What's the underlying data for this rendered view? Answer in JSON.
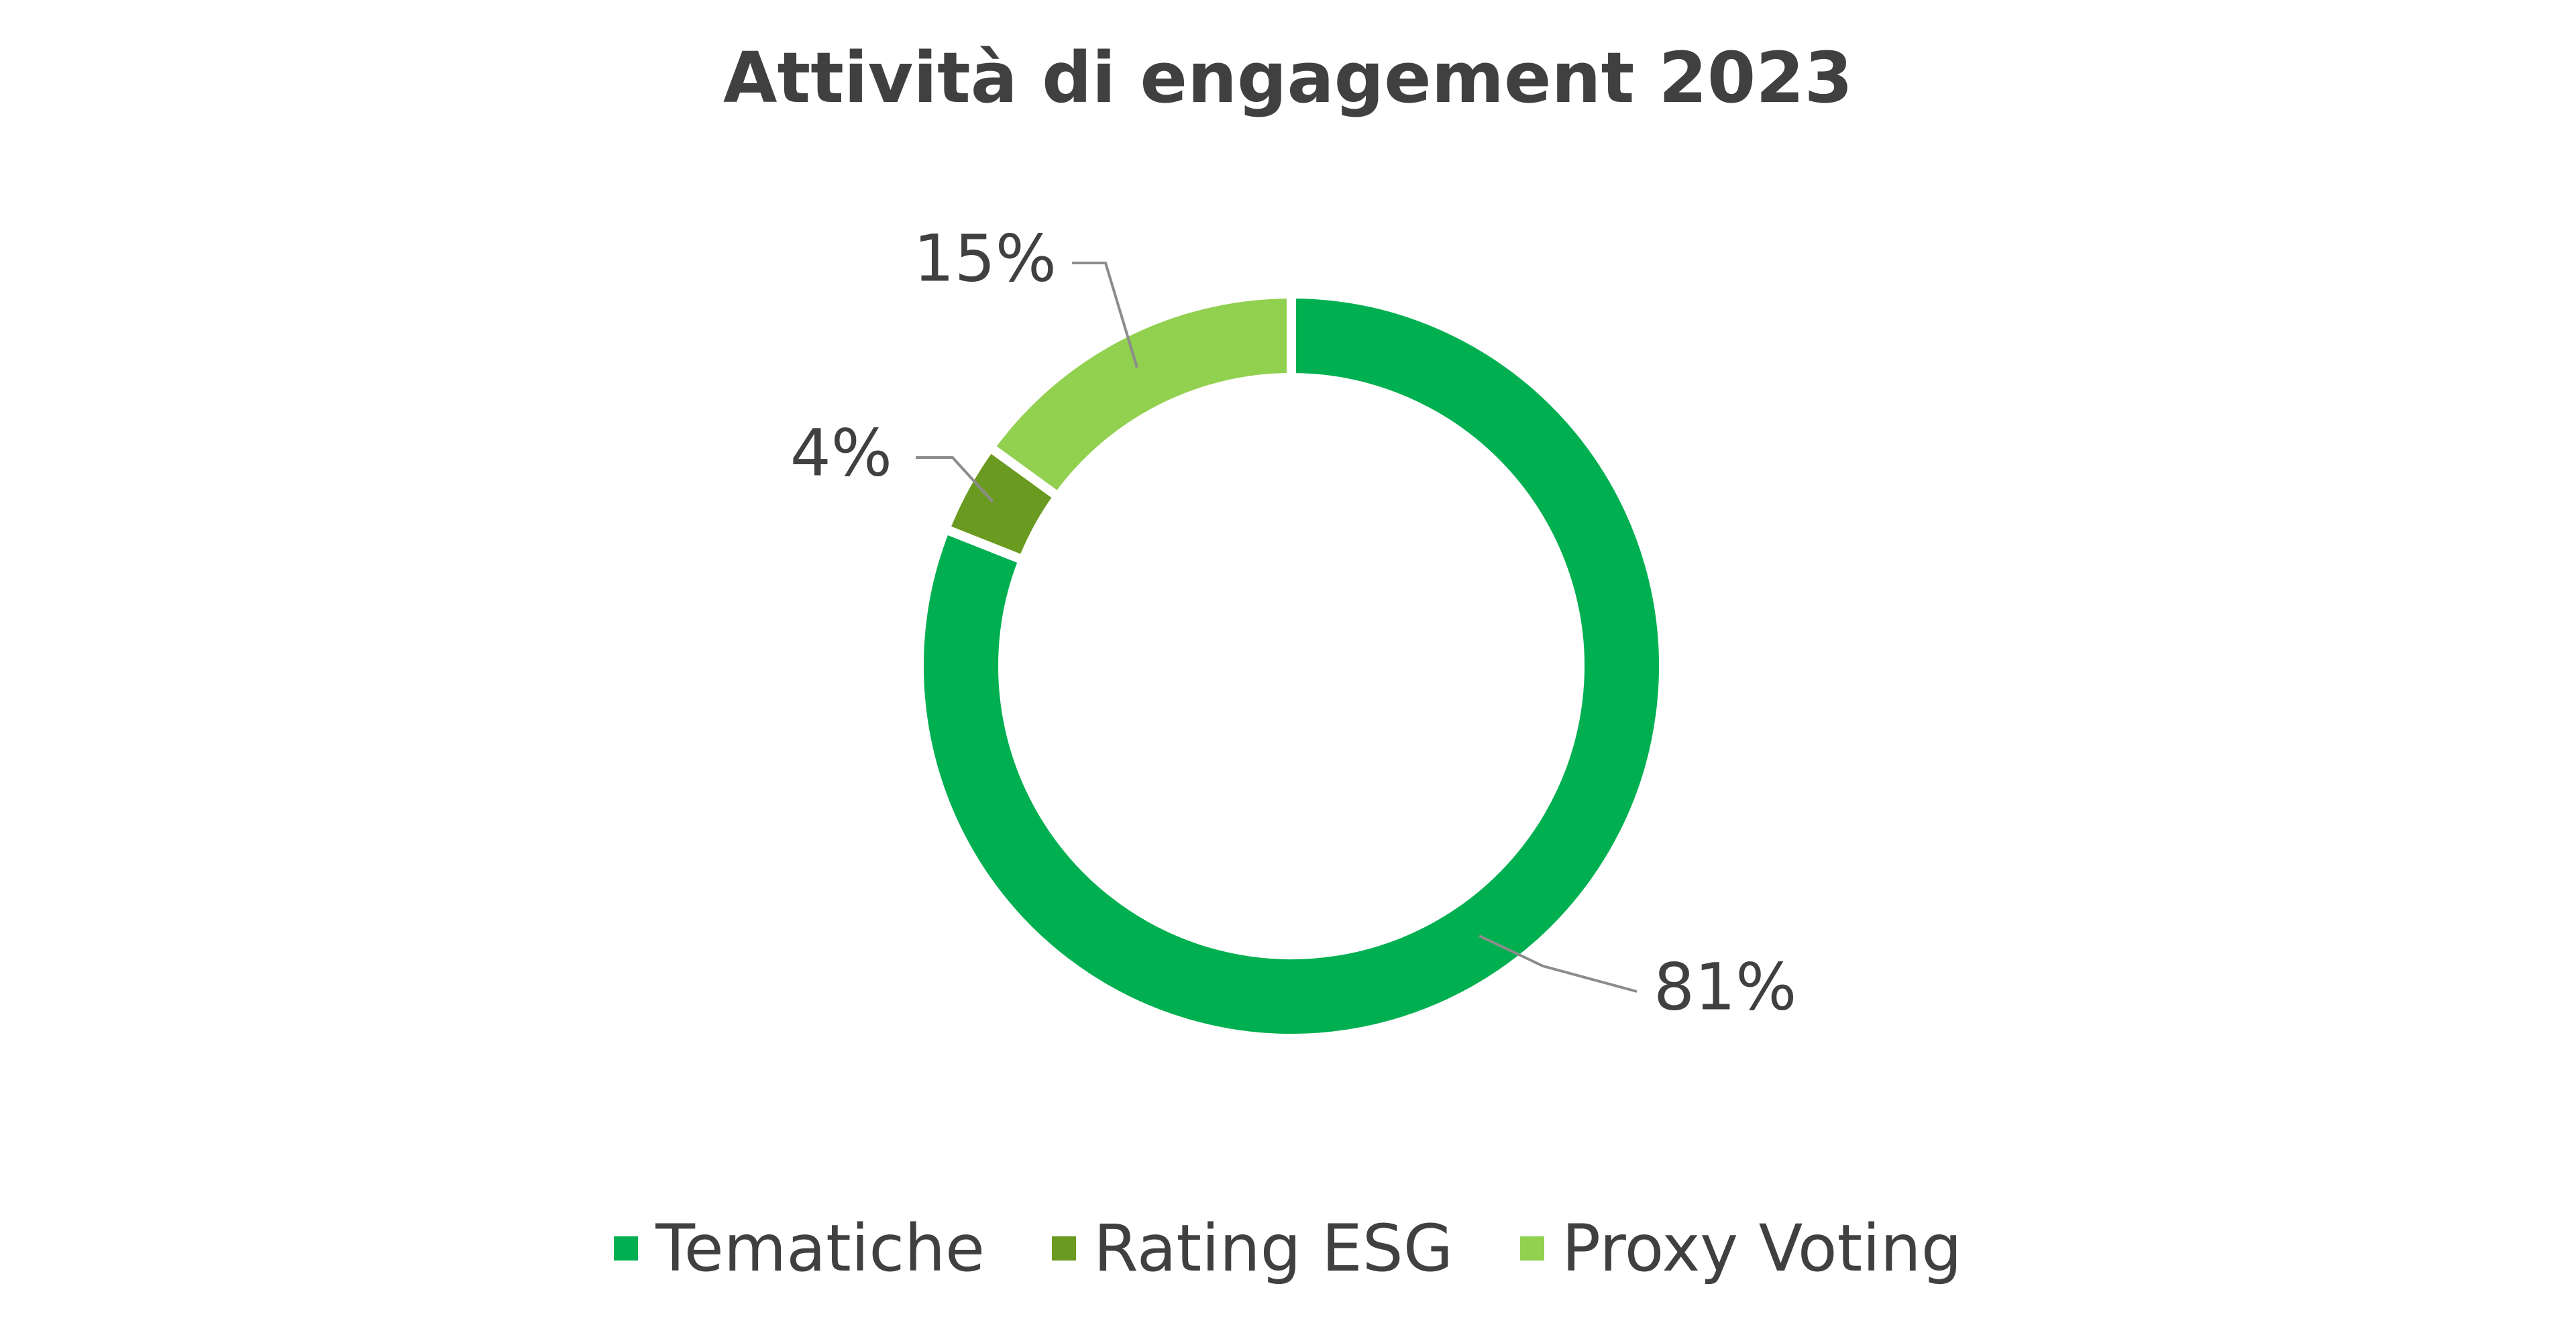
{
  "chart_data": {
    "type": "pie",
    "variant": "donut",
    "title": "Attività di engagement 2023",
    "categories": [
      "Tematiche",
      "Rating ESG",
      "Proxy Voting"
    ],
    "values": [
      81,
      4,
      15
    ],
    "data_labels": [
      "81%",
      "4%",
      "15%"
    ],
    "colors": [
      "#00b050",
      "#6a9a1f",
      "#92d050"
    ],
    "legend": "bottom",
    "grid": false
  }
}
